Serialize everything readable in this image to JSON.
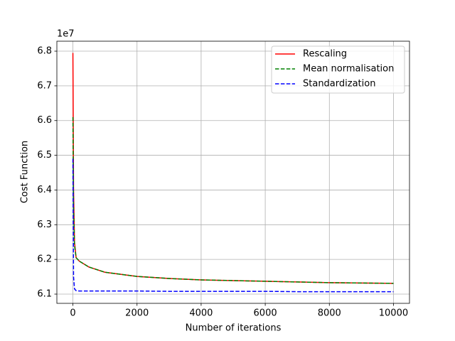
{
  "chart_data": {
    "type": "line",
    "ylabel": "Cost Function",
    "xlabel": "Number of iterations",
    "y_offset_text": "1e7",
    "x": [
      0,
      20,
      50,
      100,
      200,
      500,
      1000,
      2000,
      3000,
      4000,
      5000,
      6000,
      7000,
      8000,
      9000,
      10000
    ],
    "series": [
      {
        "name": "Rescaling",
        "color": "#ff0000",
        "dashed": false,
        "values": [
          6.795,
          6.4,
          6.25,
          6.205,
          6.195,
          6.178,
          6.163,
          6.151,
          6.145,
          6.141,
          6.139,
          6.137,
          6.135,
          6.133,
          6.132,
          6.131
        ]
      },
      {
        "name": "Mean normalisation",
        "color": "#008000",
        "dashed": true,
        "values": [
          6.61,
          6.35,
          6.24,
          6.205,
          6.195,
          6.178,
          6.163,
          6.151,
          6.145,
          6.141,
          6.139,
          6.137,
          6.135,
          6.133,
          6.132,
          6.131
        ]
      },
      {
        "name": "Standardization",
        "color": "#0000ff",
        "dashed": true,
        "values": [
          6.49,
          6.15,
          6.115,
          6.11,
          6.109,
          6.109,
          6.109,
          6.109,
          6.108,
          6.108,
          6.108,
          6.108,
          6.107,
          6.107,
          6.107,
          6.107
        ]
      }
    ],
    "xlim": [
      -500,
      10500
    ],
    "ylim": [
      6.0734,
      6.8287
    ],
    "xticks": [
      0,
      2000,
      4000,
      6000,
      8000,
      10000
    ],
    "yticks": [
      6.1,
      6.2,
      6.3,
      6.4,
      6.5,
      6.6,
      6.7,
      6.8
    ],
    "grid": true,
    "legend": "upper-right"
  }
}
